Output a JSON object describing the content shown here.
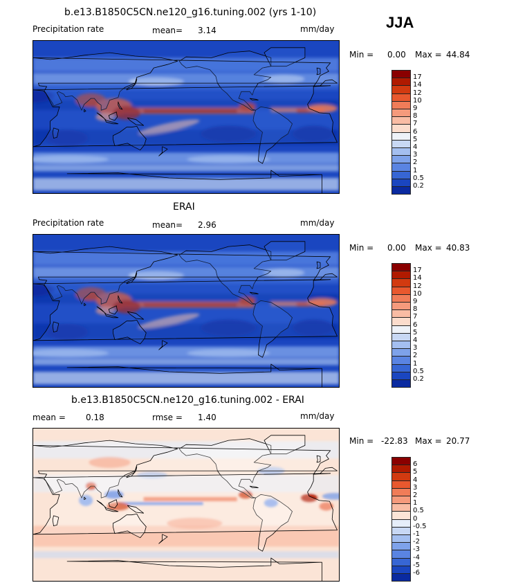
{
  "season": "JJA",
  "panels": [
    {
      "title": "b.e13.B1850C5CN.ne120_g16.tuning.002 (yrs 1-10)",
      "left_label": "Precipitation rate",
      "mean_label": "mean=",
      "mean_value": "3.14",
      "units": "mm/day",
      "min_label": "Min =",
      "min_value": "0.00",
      "max_label": "Max =",
      "max_value": "44.84",
      "scheme": "precip",
      "ticks": [
        "17",
        "14",
        "12",
        "10",
        "9",
        "8",
        "7",
        "6",
        "5",
        "4",
        "3",
        "2",
        "1",
        "0.5",
        "0.2"
      ],
      "colors": [
        "#8a0000",
        "#b01a00",
        "#d23a10",
        "#e8582e",
        "#f07c58",
        "#f59a7c",
        "#f9bca4",
        "#fbdccc",
        "#eef2f8",
        "#c8d8f4",
        "#a4bff0",
        "#7ea2ea",
        "#5a84e2",
        "#3766d4",
        "#1a46c0",
        "#0a2aa0"
      ],
      "map": "model"
    },
    {
      "title": "ERAI",
      "left_label": "Precipitation rate",
      "mean_label": "mean=",
      "mean_value": "2.96",
      "units": "mm/day",
      "min_label": "Min =",
      "min_value": "0.00",
      "max_label": "Max =",
      "max_value": "40.83",
      "scheme": "precip",
      "ticks": [
        "17",
        "14",
        "12",
        "10",
        "9",
        "8",
        "7",
        "6",
        "5",
        "4",
        "3",
        "2",
        "1",
        "0.5",
        "0.2"
      ],
      "colors": [
        "#8a0000",
        "#b01a00",
        "#d23a10",
        "#e8582e",
        "#f07c58",
        "#f59a7c",
        "#f9bca4",
        "#fbdccc",
        "#eef2f8",
        "#c8d8f4",
        "#a4bff0",
        "#7ea2ea",
        "#5a84e2",
        "#3766d4",
        "#1a46c0",
        "#0a2aa0"
      ],
      "map": "obs"
    },
    {
      "title": "b.e13.B1850C5CN.ne120_g16.tuning.002 - ERAI",
      "mean_label": "mean =",
      "mean_value": "0.18",
      "rmse_label": "rmse =",
      "rmse_value": "1.40",
      "units": "mm/day",
      "min_label": "Min =",
      "min_value": "-22.83",
      "max_label": "Max =",
      "max_value": "20.77",
      "scheme": "diff",
      "ticks": [
        "6",
        "5",
        "4",
        "3",
        "2",
        "1",
        "0.5",
        "0",
        "-0.5",
        "-1",
        "-2",
        "-3",
        "-4",
        "-5",
        "-6"
      ],
      "colors": [
        "#8a0000",
        "#b01a00",
        "#d23a10",
        "#e8582e",
        "#f07c58",
        "#f59a7c",
        "#f9bca4",
        "#fbe4d6",
        "#e6eefa",
        "#c8d8f4",
        "#a4bff0",
        "#7ea2ea",
        "#5a84e2",
        "#3766d4",
        "#1a46c0",
        "#0a2aa0"
      ],
      "map": "diff"
    }
  ]
}
